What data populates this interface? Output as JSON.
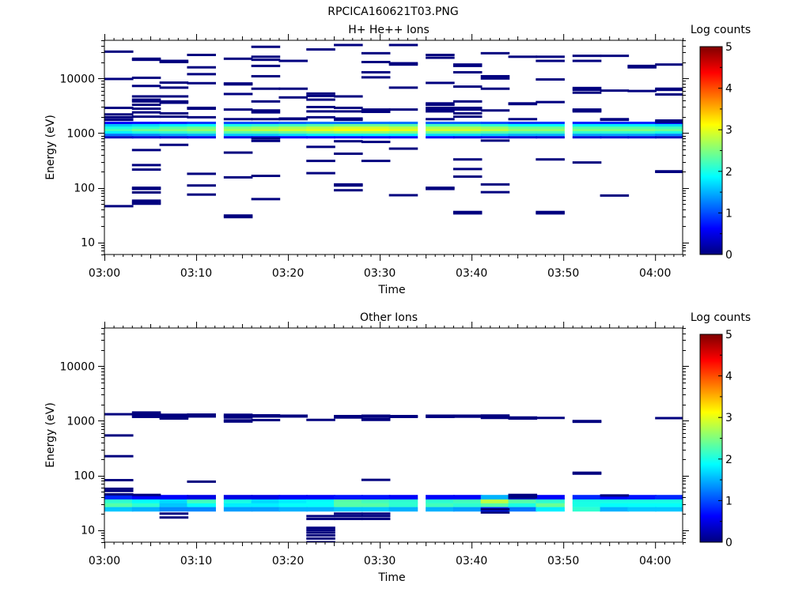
{
  "figure": {
    "title": "RPCICA160621T03.PNG"
  },
  "colorscale": {
    "stops": [
      "#00007f",
      "#0000ff",
      "#007fff",
      "#00ffff",
      "#7fff7f",
      "#ffff00",
      "#ff7f00",
      "#ff0000",
      "#7f0000"
    ]
  },
  "chart_data": [
    {
      "type": "heatmap",
      "title": "H+ He++ Ions",
      "xlabel": "Time",
      "ylabel": "Energy (eV)",
      "yscale": "log",
      "ylim": [
        6,
        50000
      ],
      "xlim": [
        "03:00",
        "04:03"
      ],
      "xticks": [
        "03:00",
        "03:10",
        "03:20",
        "03:30",
        "03:40",
        "03:50",
        "04:00"
      ],
      "yticks": [
        "10",
        "100",
        "1000",
        "10000"
      ],
      "colorbar": {
        "label": "Log counts",
        "range": [
          0,
          5
        ],
        "ticks": [
          "0",
          "1",
          "2",
          "3",
          "4",
          "5"
        ]
      },
      "time_bins": [
        "03:00",
        "03:03",
        "03:06",
        "03:09",
        "03:13",
        "03:16",
        "03:19",
        "03:22",
        "03:25",
        "03:28",
        "03:31",
        "03:35",
        "03:38",
        "03:41",
        "03:44",
        "03:47",
        "03:51",
        "03:54",
        "03:57",
        "04:00"
      ],
      "band": {
        "energies_eV": [
          840,
          930,
          1030,
          1140,
          1260,
          1390,
          1540
        ],
        "description": "continuous band across all time bins",
        "log_counts": [
          [
            0.3,
            1.2,
            1.8,
            2.2,
            2.0,
            1.6,
            0.6
          ],
          [
            0.4,
            1.3,
            2.0,
            2.4,
            2.1,
            1.7,
            0.7
          ],
          [
            0.4,
            1.4,
            2.1,
            2.5,
            2.3,
            1.8,
            0.8
          ],
          [
            0.5,
            1.5,
            2.2,
            2.6,
            2.4,
            1.9,
            0.9
          ],
          [
            0.5,
            1.6,
            2.3,
            2.7,
            2.5,
            2.0,
            1.0
          ],
          [
            0.5,
            1.6,
            2.3,
            2.8,
            2.6,
            2.1,
            1.0
          ],
          [
            0.6,
            1.7,
            2.4,
            2.9,
            2.7,
            2.2,
            1.1
          ],
          [
            0.6,
            1.8,
            2.5,
            3.0,
            2.8,
            2.3,
            1.2
          ],
          [
            0.6,
            1.8,
            2.6,
            3.1,
            2.9,
            2.4,
            1.2
          ],
          [
            0.6,
            1.8,
            2.6,
            3.1,
            2.9,
            2.4,
            1.2
          ],
          [
            0.6,
            1.8,
            2.5,
            3.0,
            2.8,
            2.3,
            1.2
          ],
          [
            0.6,
            1.7,
            2.4,
            2.9,
            2.7,
            2.2,
            1.1
          ],
          [
            0.5,
            1.7,
            2.4,
            2.9,
            2.7,
            2.2,
            1.1
          ],
          [
            0.5,
            1.6,
            2.3,
            2.8,
            2.6,
            2.1,
            1.0
          ],
          [
            0.4,
            1.5,
            2.2,
            2.6,
            2.4,
            1.9,
            0.9
          ],
          [
            0.4,
            1.5,
            2.2,
            2.6,
            2.4,
            1.9,
            0.9
          ],
          [
            0.4,
            1.4,
            2.1,
            2.5,
            2.3,
            1.8,
            0.8
          ],
          [
            0.4,
            1.4,
            2.1,
            2.5,
            2.3,
            1.8,
            0.8
          ],
          [
            0.4,
            1.4,
            2.1,
            2.5,
            2.3,
            1.8,
            0.8
          ],
          [
            0.3,
            1.3,
            2.0,
            2.4,
            2.2,
            1.7,
            0.7
          ]
        ]
      },
      "sparse_levels": [
        [
          31000,
          9800,
          2900,
          2200,
          1950,
          1750,
          46
        ],
        [
          23000,
          22000,
          10300,
          7300,
          4700,
          4100,
          3800,
          3300,
          2800,
          2400,
          2000,
          490,
          260,
          215,
          100,
          95,
          82,
          58,
          54,
          51
        ],
        [
          21000,
          20000,
          8400,
          6800,
          4700,
          3800,
          3600,
          2300,
          2000,
          610
        ],
        [
          27000,
          16000,
          12000,
          8200,
          2900,
          2800,
          1950,
          180,
          110,
          75
        ],
        [
          23000,
          8100,
          7800,
          5200,
          2700,
          1800,
          440,
          155,
          31,
          29
        ],
        [
          38000,
          25000,
          22000,
          17000,
          11000,
          6500,
          3800,
          2600,
          2400,
          1800,
          800,
          720,
          165,
          62
        ],
        [
          21000,
          6500,
          4500,
          1850,
          1800
        ],
        [
          34000,
          5300,
          4800,
          4100,
          3000,
          2500,
          1950,
          560,
          310,
          185
        ],
        [
          41000,
          4700,
          2900,
          2500,
          1850,
          1750,
          710,
          420,
          115,
          110,
          90
        ],
        [
          29000,
          20000,
          13000,
          10500,
          2700,
          2600,
          2450,
          690,
          310
        ],
        [
          41000,
          19000,
          18000,
          6800,
          2700,
          520,
          73
        ],
        [
          27000,
          24000,
          8300,
          3500,
          3300,
          2900,
          2700,
          2500,
          1800,
          100,
          95
        ],
        [
          18000,
          17000,
          13000,
          7100,
          3800,
          2900,
          2700,
          2300,
          2000,
          330,
          220,
          160,
          36,
          34
        ],
        [
          29000,
          11000,
          10000,
          6500,
          2600,
          730,
          115,
          83
        ],
        [
          25000,
          3500,
          3400,
          1800
        ],
        [
          25000,
          21000,
          9600,
          3700,
          330,
          36,
          34
        ],
        [
          26000,
          21000,
          6700,
          6200,
          5500,
          2700,
          2600,
          2500,
          290
        ],
        [
          26000,
          6000,
          1800,
          1750,
          72
        ],
        [
          17000,
          16000,
          5900
        ],
        [
          18000,
          6500,
          6200,
          5100,
          1700,
          1600,
          200,
          195
        ]
      ]
    },
    {
      "type": "heatmap",
      "title": "Other Ions",
      "xlabel": "Time",
      "ylabel": "Energy (eV)",
      "yscale": "log",
      "ylim": [
        6,
        50000
      ],
      "xlim": [
        "03:00",
        "04:03"
      ],
      "xticks": [
        "03:00",
        "03:10",
        "03:20",
        "03:30",
        "03:40",
        "03:50",
        "04:00"
      ],
      "yticks": [
        "10",
        "100",
        "1000",
        "10000"
      ],
      "colorbar": {
        "label": "Log counts",
        "range": [
          0,
          5
        ],
        "ticks": [
          "0",
          "1",
          "2",
          "3",
          "4",
          "5"
        ]
      },
      "time_bins": [
        "03:00",
        "03:03",
        "03:06",
        "03:09",
        "03:13",
        "03:16",
        "03:19",
        "03:22",
        "03:25",
        "03:28",
        "03:31",
        "03:35",
        "03:38",
        "03:41",
        "03:44",
        "03:47",
        "03:51",
        "03:54",
        "03:57",
        "04:00"
      ],
      "band": {
        "energies_eV": [
          24,
          29,
          34,
          40
        ],
        "description": "low-energy band across all time bins",
        "log_counts": [
          [
            1.6,
            2.3,
            2.1,
            0.8
          ],
          [
            1.5,
            2.1,
            1.9,
            0.6
          ],
          [
            1.3,
            1.6,
            1.7,
            0.6
          ],
          [
            1.3,
            1.9,
            2.2,
            0.5
          ],
          [
            1.4,
            1.8,
            2.0,
            0.5
          ],
          [
            1.4,
            1.8,
            1.7,
            0.5
          ],
          [
            1.5,
            1.9,
            1.8,
            0.6
          ],
          [
            1.5,
            1.9,
            1.9,
            0.6
          ],
          [
            1.6,
            2.3,
            2.3,
            0.7
          ],
          [
            1.6,
            2.3,
            2.2,
            0.7
          ],
          [
            1.5,
            2.1,
            2.1,
            0.6
          ],
          [
            1.5,
            2.2,
            2.1,
            0.6
          ],
          [
            1.4,
            2.1,
            2.2,
            0.6
          ],
          [
            0.8,
            2.3,
            2.8,
            1.5
          ],
          [
            1.2,
            2.0,
            2.3,
            0.3
          ],
          [
            1.8,
            2.4,
            2.1,
            0.6
          ],
          [
            2.1,
            2.0,
            2.0,
            0.8
          ],
          [
            1.5,
            1.9,
            2.0,
            0.6
          ],
          [
            1.6,
            1.9,
            2.0,
            0.7
          ],
          [
            1.6,
            1.9,
            2.0,
            0.8
          ]
        ]
      },
      "sparse_levels": [
        [
          1320,
          540,
          225,
          82,
          57,
          52,
          45
        ],
        [
          1420,
          1330,
          1240,
          1180,
          44
        ],
        [
          1290,
          1220,
          1150,
          1100,
          20,
          17
        ],
        [
          1300,
          1250,
          1200,
          77
        ],
        [
          1290,
          1220,
          1150,
          1020,
          970
        ],
        [
          1260,
          1200,
          1030
        ],
        [
          1240,
          1200
        ],
        [
          1040,
          18,
          16,
          11,
          10,
          9,
          8,
          7,
          6
        ],
        [
          1220,
          1150,
          20,
          18,
          16
        ],
        [
          1240,
          1200,
          1080,
          1040,
          83,
          20,
          18,
          16
        ],
        [
          1220,
          1180
        ],
        [
          1240,
          1180
        ],
        [
          1240,
          1190
        ],
        [
          1250,
          1200,
          1130,
          24,
          21
        ],
        [
          1150,
          1100,
          44,
          40
        ],
        [
          1130
        ],
        [
          990,
          960,
          112,
          108
        ],
        [
          43
        ],
        [],
        [
          1120
        ]
      ]
    }
  ]
}
